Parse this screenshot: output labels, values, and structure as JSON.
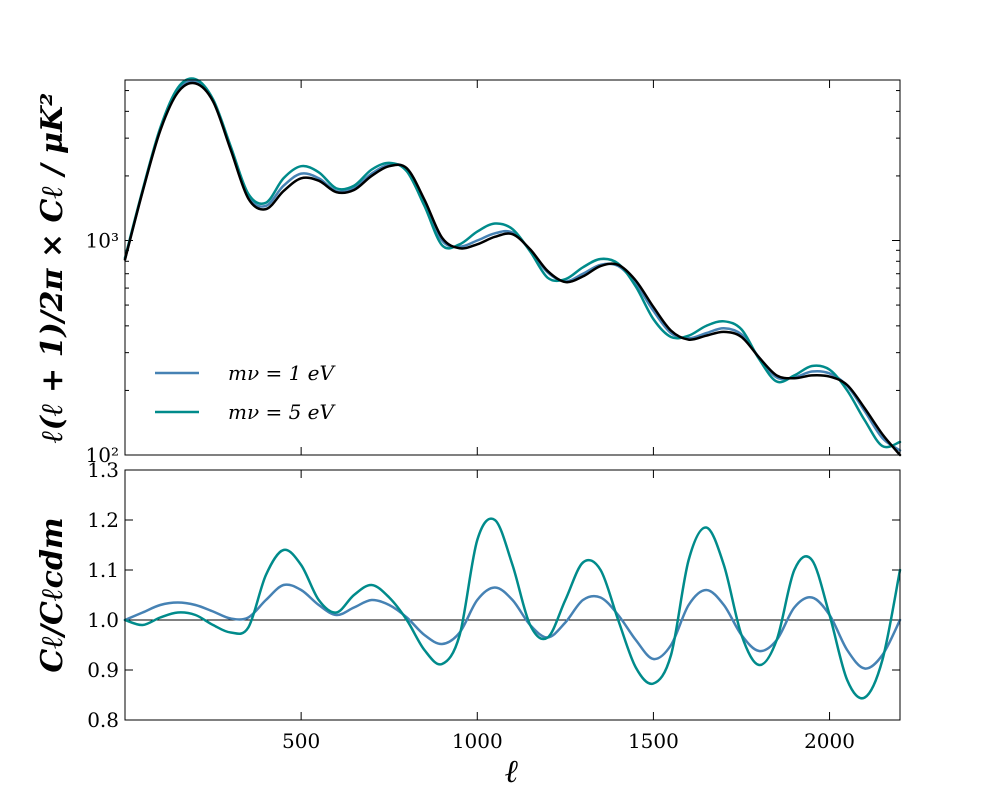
{
  "chart_data": [
    {
      "type": "line",
      "panel": "top",
      "ylabel": "ℓ(ℓ + 1)/2π × Cℓ  /  μK²",
      "yscale": "log",
      "xlim": [
        0,
        2200
      ],
      "ylim": [
        100,
        5600
      ],
      "yticks": [
        {
          "value": 100,
          "label": "10²"
        },
        {
          "value": 1000,
          "label": "10³"
        }
      ],
      "legend": {
        "placement": "lower-left",
        "entries": [
          {
            "label": "mν = 1 eV",
            "color": "#4682b4"
          },
          {
            "label": "mν = 5 eV",
            "color": "#008b8b"
          }
        ]
      },
      "series": [
        {
          "name": "mν = 1 eV",
          "color": "#4682b4",
          "x": [
            0,
            50,
            100,
            150,
            200,
            250,
            300,
            350,
            400,
            450,
            500,
            550,
            600,
            650,
            700,
            750,
            800,
            850,
            900,
            950,
            1000,
            1050,
            1100,
            1150,
            1200,
            1250,
            1300,
            1350,
            1400,
            1450,
            1500,
            1550,
            1600,
            1650,
            1700,
            1750,
            1800,
            1850,
            1900,
            1950,
            2000,
            2050,
            2100,
            2150,
            2200
          ],
          "y": [
            820,
            1700,
            3300,
            5000,
            5500,
            4500,
            2700,
            1600,
            1450,
            1800,
            2050,
            1950,
            1700,
            1750,
            2050,
            2250,
            2150,
            1500,
            1000,
            935,
            1000,
            1080,
            1090,
            900,
            710,
            645,
            700,
            770,
            760,
            630,
            470,
            370,
            350,
            370,
            390,
            365,
            285,
            230,
            230,
            245,
            240,
            210,
            160,
            120,
            105
          ]
        },
        {
          "name": "mν = 5 eV",
          "color": "#008b8b",
          "x": [
            0,
            50,
            100,
            150,
            200,
            250,
            300,
            350,
            400,
            450,
            500,
            550,
            600,
            650,
            700,
            750,
            800,
            850,
            900,
            950,
            1000,
            1050,
            1100,
            1150,
            1200,
            1250,
            1300,
            1350,
            1400,
            1450,
            1500,
            1550,
            1600,
            1650,
            1700,
            1750,
            1800,
            1850,
            1900,
            1950,
            2000,
            2050,
            2100,
            2150,
            2200
          ],
          "y": [
            830,
            1720,
            3350,
            5150,
            5650,
            4550,
            2750,
            1650,
            1500,
            1950,
            2220,
            2080,
            1750,
            1800,
            2140,
            2300,
            2100,
            1450,
            950,
            960,
            1100,
            1200,
            1130,
            890,
            670,
            660,
            750,
            820,
            780,
            610,
            430,
            355,
            360,
            400,
            420,
            385,
            280,
            220,
            235,
            260,
            250,
            200,
            145,
            110,
            115
          ]
        },
        {
          "name": "",
          "color": "#000000",
          "x": [
            0,
            50,
            100,
            150,
            200,
            250,
            300,
            350,
            400,
            450,
            500,
            550,
            600,
            650,
            700,
            750,
            800,
            850,
            900,
            950,
            1000,
            1050,
            1100,
            1150,
            1200,
            1250,
            1300,
            1350,
            1400,
            1450,
            1500,
            1550,
            1600,
            1650,
            1700,
            1750,
            1800,
            1850,
            1900,
            1950,
            2000,
            2050,
            2100,
            2150,
            2200
          ],
          "y": [
            815,
            1690,
            3250,
            4900,
            5400,
            4450,
            2650,
            1570,
            1400,
            1700,
            1950,
            1900,
            1680,
            1720,
            2000,
            2220,
            2170,
            1550,
            1030,
            920,
            960,
            1040,
            1070,
            910,
            720,
            640,
            680,
            760,
            770,
            650,
            490,
            380,
            345,
            360,
            375,
            355,
            285,
            235,
            228,
            235,
            232,
            212,
            165,
            125,
            100
          ]
        }
      ]
    },
    {
      "type": "line",
      "panel": "bottom",
      "xlabel": "ℓ",
      "ylabel": "Cℓ/Cℓcdm",
      "xlim": [
        0,
        2200
      ],
      "ylim": [
        0.8,
        1.3
      ],
      "xticks": [
        {
          "value": 500,
          "label": "500"
        },
        {
          "value": 1000,
          "label": "1000"
        },
        {
          "value": 1500,
          "label": "1500"
        },
        {
          "value": 2000,
          "label": "2000"
        }
      ],
      "yticks": [
        {
          "value": 0.8,
          "label": "0.8"
        },
        {
          "value": 0.9,
          "label": "0.9"
        },
        {
          "value": 1.0,
          "label": "1.0"
        },
        {
          "value": 1.1,
          "label": "1.1"
        },
        {
          "value": 1.2,
          "label": "1.2"
        },
        {
          "value": 1.3,
          "label": "1.3"
        }
      ],
      "reference_line": 1.0,
      "series": [
        {
          "name": "mν = 1 eV",
          "color": "#4682b4",
          "x": [
            0,
            50,
            100,
            150,
            200,
            250,
            300,
            350,
            400,
            450,
            500,
            550,
            600,
            650,
            700,
            750,
            800,
            850,
            900,
            950,
            1000,
            1050,
            1100,
            1150,
            1200,
            1250,
            1300,
            1350,
            1400,
            1450,
            1500,
            1550,
            1600,
            1650,
            1700,
            1750,
            1800,
            1850,
            1900,
            1950,
            2000,
            2050,
            2100,
            2150,
            2200
          ],
          "y": [
            1.0,
            1.015,
            1.03,
            1.035,
            1.03,
            1.017,
            1.003,
            1.005,
            1.04,
            1.07,
            1.06,
            1.03,
            1.01,
            1.025,
            1.04,
            1.03,
            1.005,
            0.97,
            0.952,
            0.975,
            1.04,
            1.065,
            1.04,
            0.99,
            0.965,
            0.995,
            1.04,
            1.045,
            1.01,
            0.96,
            0.922,
            0.95,
            1.03,
            1.06,
            1.03,
            0.97,
            0.938,
            0.96,
            1.025,
            1.045,
            1.01,
            0.94,
            0.903,
            0.93,
            1.0
          ]
        },
        {
          "name": "mν = 5 eV",
          "color": "#008b8b",
          "x": [
            0,
            50,
            100,
            150,
            200,
            250,
            300,
            350,
            400,
            450,
            500,
            550,
            600,
            650,
            700,
            750,
            800,
            850,
            900,
            950,
            1000,
            1050,
            1100,
            1150,
            1200,
            1250,
            1300,
            1350,
            1400,
            1450,
            1500,
            1550,
            1600,
            1650,
            1700,
            1750,
            1800,
            1850,
            1900,
            1950,
            2000,
            2050,
            2100,
            2150,
            2200
          ],
          "y": [
            1.0,
            0.99,
            1.005,
            1.015,
            1.01,
            0.99,
            0.975,
            0.985,
            1.09,
            1.14,
            1.11,
            1.04,
            1.015,
            1.05,
            1.07,
            1.045,
            1.0,
            0.94,
            0.912,
            0.97,
            1.16,
            1.2,
            1.11,
            0.99,
            0.965,
            1.04,
            1.115,
            1.1,
            1.0,
            0.905,
            0.873,
            0.93,
            1.12,
            1.185,
            1.11,
            0.97,
            0.91,
            0.96,
            1.1,
            1.12,
            1.01,
            0.88,
            0.845,
            0.92,
            1.1
          ]
        }
      ]
    }
  ]
}
